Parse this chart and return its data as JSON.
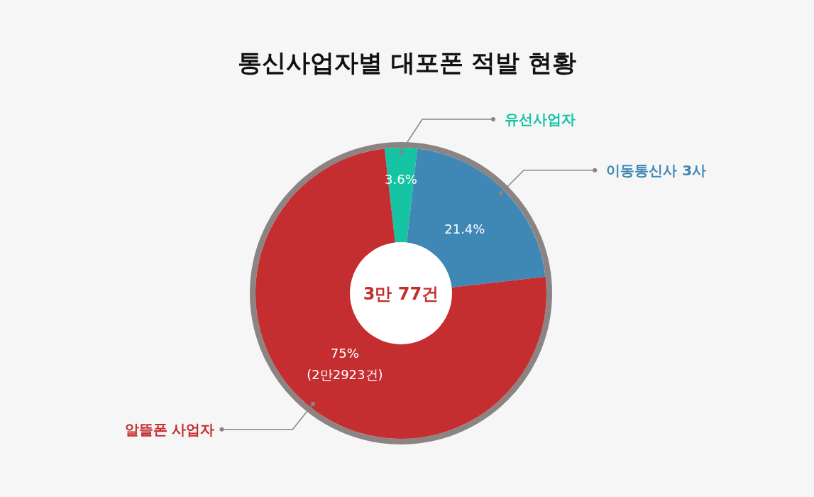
{
  "chart_data": {
    "type": "donut",
    "title": "통신사업자별 대포폰 적발 현황",
    "categories": [
      "유선사업자",
      "이동통신사 3사",
      "알뜰폰 사업자"
    ],
    "values": [
      3.6,
      21.4,
      75
    ],
    "colors": [
      "#14c4a2",
      "#3f88b6",
      "#c52e30"
    ],
    "value_labels": [
      "3.6%",
      "21.4%",
      "75%\n(2만2923건)"
    ],
    "annotations": [
      "3만 77건"
    ]
  }
}
